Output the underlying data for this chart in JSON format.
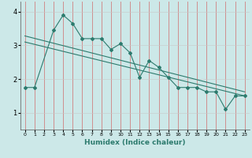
{
  "xlabel": "Humidex (Indice chaleur)",
  "xlim": [
    -0.5,
    23.5
  ],
  "ylim": [
    0.5,
    4.3
  ],
  "yticks": [
    1,
    2,
    3,
    4
  ],
  "xticks": [
    0,
    1,
    2,
    3,
    4,
    5,
    6,
    7,
    8,
    9,
    10,
    11,
    12,
    13,
    14,
    15,
    16,
    17,
    18,
    19,
    20,
    21,
    22,
    23
  ],
  "bg_color": "#cce8e8",
  "line_color": "#2d7b6e",
  "grid_color_v": "#d08080",
  "grid_color_h": "#c8c8c8",
  "line1_x": [
    0,
    1,
    3,
    4,
    5,
    6,
    7,
    8,
    9,
    10,
    11,
    12,
    13,
    14,
    15,
    16,
    17,
    18,
    19,
    20,
    21,
    22,
    23
  ],
  "line1_y": [
    1.75,
    1.75,
    3.45,
    3.9,
    3.65,
    3.2,
    3.2,
    3.2,
    2.88,
    3.05,
    2.78,
    2.05,
    2.55,
    2.35,
    2.05,
    1.75,
    1.75,
    1.75,
    1.62,
    1.62,
    1.1,
    1.5,
    1.5
  ],
  "line2_x": [
    0,
    23
  ],
  "line2_y": [
    3.28,
    1.62
  ],
  "line3_x": [
    0,
    23
  ],
  "line3_y": [
    3.1,
    1.5
  ],
  "xtick_fontsize": 4.5,
  "ytick_fontsize": 6,
  "xlabel_fontsize": 6.5
}
